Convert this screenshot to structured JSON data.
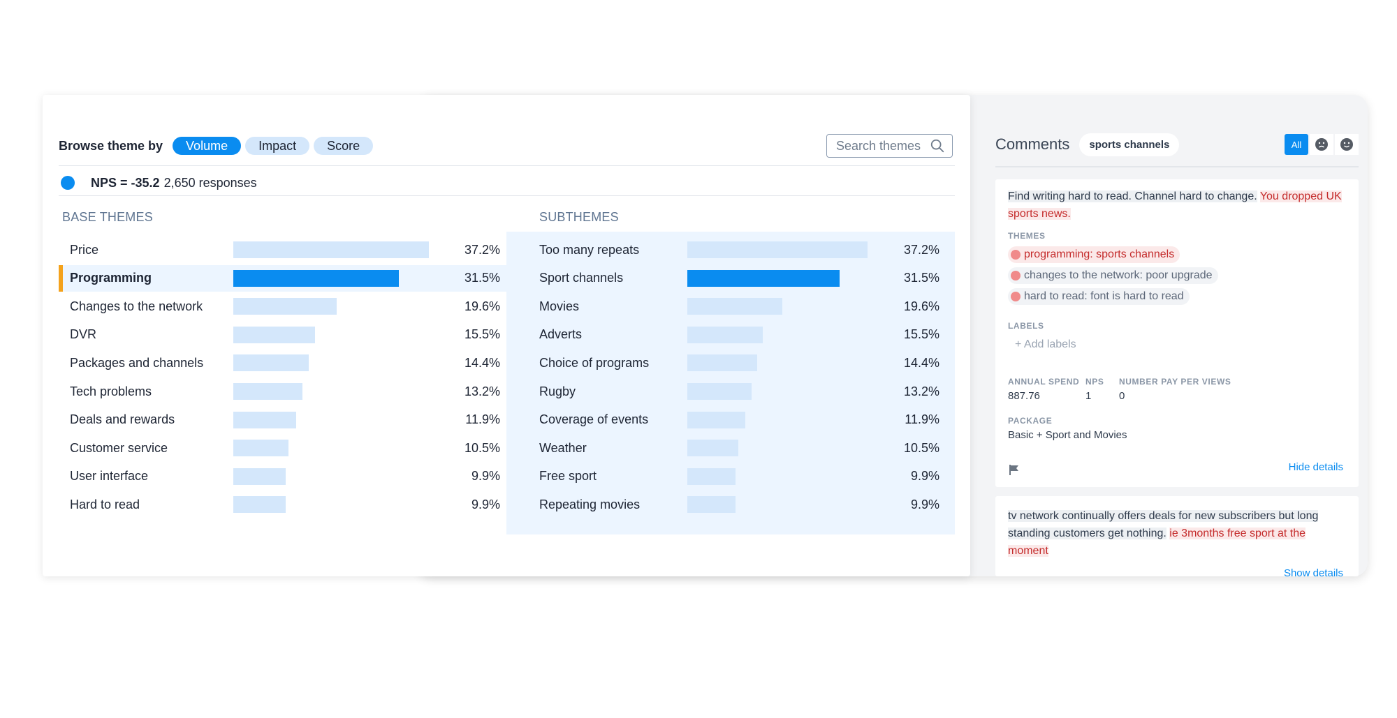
{
  "browse": {
    "label": "Browse theme by",
    "tabs": [
      "Volume",
      "Impact",
      "Score"
    ],
    "active_tab": "Volume",
    "search_placeholder": "Search themes"
  },
  "nps": {
    "value": "NPS = -35.2",
    "responses": "2,650 responses",
    "dot_color": "#0a8cf0"
  },
  "base_themes": {
    "title": "BASE THEMES",
    "rows": [
      {
        "label": "Price",
        "pct": "37.2%",
        "value": 37.2
      },
      {
        "label": "Programming",
        "pct": "31.5%",
        "value": 31.5
      },
      {
        "label": "Changes to the network",
        "pct": "19.6%",
        "value": 19.6
      },
      {
        "label": "DVR",
        "pct": "15.5%",
        "value": 15.5
      },
      {
        "label": "Packages and channels",
        "pct": "14.4%",
        "value": 14.4
      },
      {
        "label": "Tech problems",
        "pct": "13.2%",
        "value": 13.2
      },
      {
        "label": "Deals and rewards",
        "pct": "11.9%",
        "value": 11.9
      },
      {
        "label": "Customer service",
        "pct": "10.5%",
        "value": 10.5
      },
      {
        "label": "User interface",
        "pct": "9.9%",
        "value": 9.9
      },
      {
        "label": "Hard to read",
        "pct": "9.9%",
        "value": 9.9
      }
    ],
    "selected": "Programming"
  },
  "subthemes": {
    "title": "SUBTHEMES",
    "rows": [
      {
        "label": "Too many repeats",
        "pct": "37.2%",
        "value": 37.2
      },
      {
        "label": "Sport channels",
        "pct": "31.5%",
        "value": 31.5
      },
      {
        "label": "Movies",
        "pct": "19.6%",
        "value": 19.6
      },
      {
        "label": "Adverts",
        "pct": "15.5%",
        "value": 15.5
      },
      {
        "label": "Choice of programs",
        "pct": "14.4%",
        "value": 14.4
      },
      {
        "label": "Rugby",
        "pct": "13.2%",
        "value": 13.2
      },
      {
        "label": "Coverage of events",
        "pct": "11.9%",
        "value": 11.9
      },
      {
        "label": "Weather",
        "pct": "10.5%",
        "value": 10.5
      },
      {
        "label": "Free sport",
        "pct": "9.9%",
        "value": 9.9
      },
      {
        "label": "Repeating movies",
        "pct": "9.9%",
        "value": 9.9
      }
    ],
    "selected": "Sport channels"
  },
  "colors": {
    "accent": "#0a8cf0",
    "bar_light": "#d4e7fb",
    "selection_marker": "#f4a21c",
    "negative": "#c42b2b"
  },
  "comments": {
    "title": "Comments",
    "topic_chip": "sports channels",
    "filter_all": "All",
    "filter_icons": [
      "sad-face-icon",
      "happy-face-icon"
    ],
    "first": {
      "text_plain": "Find writing hard to read. Channel hard to change.",
      "text_highlight": "You dropped UK sports news.",
      "themes_label": "THEMES",
      "themes": [
        {
          "label": "programming: sports channels",
          "sentiment": "negative"
        },
        {
          "label": "changes to the network: poor upgrade",
          "sentiment": "neutral"
        },
        {
          "label": "hard to read: font is hard to read",
          "sentiment": "neutral"
        }
      ],
      "labels_label": "LABELS",
      "add_labels": "+ Add labels",
      "meta": [
        {
          "label": "ANNUAL SPEND",
          "value": "887.76"
        },
        {
          "label": "NPS",
          "value": "1"
        },
        {
          "label": "NUMBER PAY PER VIEWS",
          "value": "0"
        }
      ],
      "package_label": "PACKAGE",
      "package_value": "Basic + Sport and Movies",
      "hide_details": "Hide details"
    },
    "second": {
      "text_plain_1": "tv network continually offers deals for new subscribers but long standing customers get nothing.",
      "text_highlight": "ie 3months free sport at the moment",
      "show_details": "Show details"
    }
  }
}
